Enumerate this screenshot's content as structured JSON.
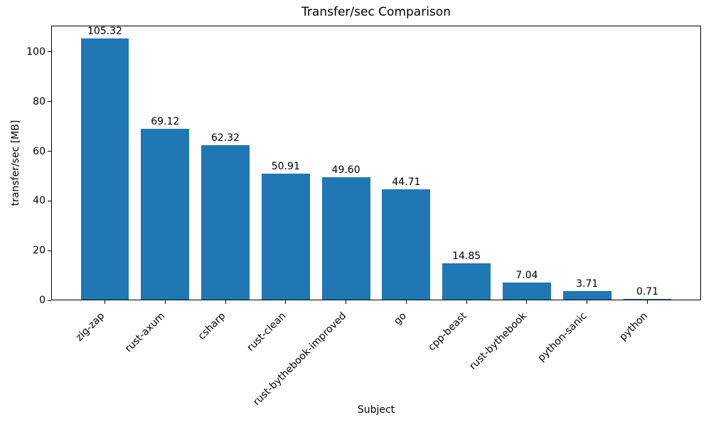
{
  "chart_data": {
    "type": "bar",
    "title": "Transfer/sec Comparison",
    "xlabel": "Subject",
    "ylabel": "transfer/sec [MB]",
    "categories": [
      "zig-zap",
      "rust-axum",
      "csharp",
      "rust-clean",
      "rust-bythebook-improved",
      "go",
      "cpp-beast",
      "rust-bythebook",
      "python-sanic",
      "python"
    ],
    "values": [
      105.32,
      69.12,
      62.32,
      50.91,
      49.6,
      44.71,
      14.85,
      7.04,
      3.71,
      0.71
    ],
    "bar_labels": [
      "105.32",
      "69.12",
      "62.32",
      "50.91",
      "49.60",
      "44.71",
      "14.85",
      "7.04",
      "3.71",
      "0.71"
    ],
    "yticks": [
      0,
      20,
      40,
      60,
      80,
      100
    ],
    "ylim": [
      0,
      110.59
    ],
    "bar_color": "#1f77b4",
    "text_color": "#000000",
    "grid": false,
    "legend": null,
    "xtick_rotation_deg": 45
  }
}
